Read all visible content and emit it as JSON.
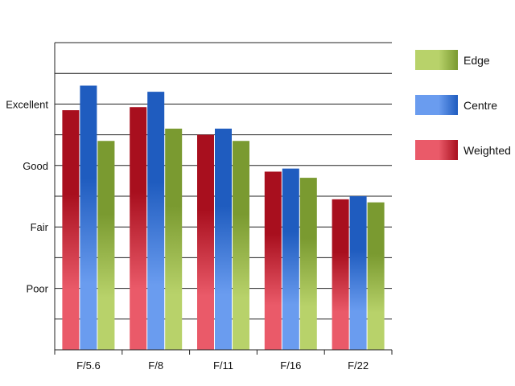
{
  "chart_data": {
    "type": "bar",
    "categories": [
      "F/5.6",
      "F/8",
      "F/11",
      "F/16",
      "F/22"
    ],
    "series": [
      {
        "name": "Weighted",
        "values": [
          7.8,
          7.9,
          7.0,
          5.8,
          4.9
        ]
      },
      {
        "name": "Centre",
        "values": [
          8.6,
          8.4,
          7.2,
          5.9,
          5.0
        ]
      },
      {
        "name": "Edge",
        "values": [
          6.8,
          7.2,
          6.8,
          5.6,
          4.8
        ]
      }
    ],
    "y_tick_labels": [
      {
        "label": "Poor",
        "value": 2
      },
      {
        "label": "Fair",
        "value": 4
      },
      {
        "label": "Good",
        "value": 6
      },
      {
        "label": "Excellent",
        "value": 8
      }
    ],
    "ylim": [
      0,
      10
    ],
    "grid": true,
    "legend_position": "right",
    "legend_order": [
      "Edge",
      "Centre",
      "Weighted"
    ],
    "colors": {
      "Weighted": {
        "dark": "#a80f1e",
        "light": "#ea5a69"
      },
      "Centre": {
        "dark": "#1f5cbf",
        "light": "#6a9cef"
      },
      "Edge": {
        "dark": "#7a9a30",
        "light": "#b8d26a"
      }
    },
    "title": "",
    "xlabel": "",
    "ylabel": ""
  }
}
